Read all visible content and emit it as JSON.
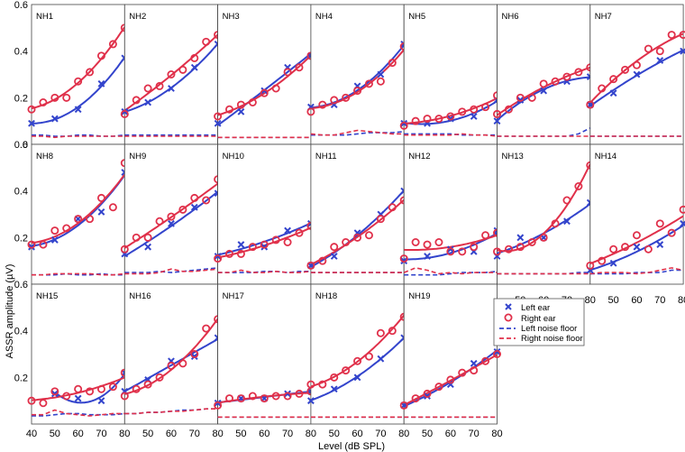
{
  "chart_data": {
    "type": "scatter",
    "xlabel": "Level (dB SPL)",
    "ylabel": "ASSR amplitude (µV)",
    "xlim": [
      40,
      80
    ],
    "ylim": [
      0,
      0.6
    ],
    "x_ticks": [
      40,
      50,
      60,
      70,
      80
    ],
    "y_ticks": [
      0,
      0.2,
      0.4,
      0.6
    ],
    "y_tick_labels": [
      "0",
      "0.2",
      "0.4",
      "0.6"
    ],
    "colors": {
      "left": "#3344cc",
      "right": "#e0304a"
    },
    "legend": [
      {
        "label": "Left ear",
        "marker": "x",
        "color": "#3344cc"
      },
      {
        "label": "Right ear",
        "marker": "o",
        "color": "#e0304a"
      },
      {
        "label": "Left noise floor",
        "line": "dashed",
        "color": "#3344cc"
      },
      {
        "label": "Right noise floor",
        "line": "dashed",
        "color": "#e0304a"
      }
    ],
    "x": [
      40,
      45,
      50,
      55,
      60,
      65,
      70,
      75,
      80
    ],
    "panels": [
      {
        "label": "NH1",
        "left": [
          0.09,
          null,
          0.11,
          null,
          0.15,
          null,
          0.26,
          null,
          0.37
        ],
        "right": [
          0.15,
          0.18,
          0.2,
          0.2,
          0.27,
          0.31,
          0.38,
          0.43,
          0.5
        ],
        "left_noise": [
          0.04,
          0.04,
          0.035,
          0.035,
          0.04,
          0.04,
          0.035,
          0.035,
          0.04
        ],
        "right_noise": [
          0.035,
          0.035,
          0.03,
          0.035,
          0.035,
          0.035,
          0.035,
          0.035,
          0.035
        ]
      },
      {
        "label": "NH2",
        "left": [
          0.14,
          null,
          0.18,
          null,
          0.24,
          null,
          0.33,
          null,
          0.43
        ],
        "right": [
          0.13,
          0.19,
          0.24,
          0.25,
          0.3,
          0.32,
          0.37,
          0.44,
          0.47
        ],
        "left_noise": [
          0.04,
          0.04,
          0.04,
          0.04,
          0.04,
          0.04,
          0.04,
          0.04,
          0.04
        ],
        "right_noise": [
          0.035,
          0.035,
          0.035,
          0.035,
          0.035,
          0.035,
          0.035,
          0.035,
          0.035
        ]
      },
      {
        "label": "NH3",
        "left": [
          0.09,
          null,
          0.14,
          null,
          0.23,
          null,
          0.33,
          null,
          0.38
        ],
        "right": [
          0.12,
          0.15,
          0.17,
          0.18,
          0.22,
          0.24,
          0.31,
          0.33,
          0.38
        ],
        "left_noise": [
          0.03,
          0.03,
          0.03,
          0.03,
          0.03,
          0.03,
          0.03,
          0.03,
          0.03
        ],
        "right_noise": [
          0.03,
          0.03,
          0.03,
          0.03,
          0.03,
          0.03,
          0.03,
          0.03,
          0.03
        ]
      },
      {
        "label": "NH4",
        "left": [
          0.16,
          null,
          0.17,
          null,
          0.25,
          null,
          0.3,
          null,
          0.43
        ],
        "right": [
          0.14,
          0.17,
          0.19,
          0.2,
          0.23,
          0.26,
          0.27,
          0.35,
          0.42
        ],
        "left_noise": [
          0.04,
          0.04,
          0.04,
          0.04,
          0.045,
          0.05,
          0.05,
          0.05,
          0.055
        ],
        "right_noise": [
          0.045,
          0.04,
          0.04,
          0.05,
          0.06,
          0.055,
          0.05,
          0.045,
          0.045
        ]
      },
      {
        "label": "NH5",
        "left": [
          0.09,
          null,
          0.09,
          null,
          0.11,
          null,
          0.12,
          null,
          0.19
        ],
        "right": [
          0.08,
          0.1,
          0.11,
          0.11,
          0.12,
          0.14,
          0.15,
          0.16,
          0.21
        ],
        "left_noise": [
          0.045,
          0.045,
          0.045,
          0.045,
          0.045,
          0.04,
          0.04,
          0.04,
          0.04
        ],
        "right_noise": [
          0.04,
          0.04,
          0.04,
          0.04,
          0.04,
          0.045,
          0.04,
          0.04,
          0.035
        ]
      },
      {
        "label": "NH6",
        "left": [
          0.1,
          null,
          0.19,
          null,
          0.23,
          null,
          0.27,
          null,
          0.29
        ],
        "right": [
          0.13,
          0.15,
          0.2,
          0.2,
          0.26,
          0.27,
          0.29,
          0.31,
          0.33
        ],
        "left_noise": [
          0.035,
          0.035,
          0.035,
          0.035,
          0.035,
          0.035,
          0.035,
          0.045,
          0.07
        ],
        "right_noise": [
          0.035,
          0.035,
          0.035,
          0.035,
          0.035,
          0.035,
          0.035,
          0.035,
          0.035
        ]
      },
      {
        "label": "NH7",
        "left": [
          0.17,
          null,
          0.22,
          null,
          0.3,
          null,
          0.36,
          null,
          0.4
        ],
        "right": [
          0.17,
          0.24,
          0.28,
          0.32,
          0.34,
          0.41,
          0.4,
          0.47,
          0.47
        ],
        "left_noise": [
          0.035,
          0.035,
          0.035,
          0.035,
          0.035,
          0.035,
          0.035,
          0.035,
          0.035
        ],
        "right_noise": [
          0.035,
          0.035,
          0.035,
          0.035,
          0.035,
          0.035,
          0.035,
          0.035,
          0.035
        ]
      },
      {
        "label": "NH8",
        "left": [
          0.16,
          null,
          0.19,
          null,
          0.28,
          null,
          0.31,
          null,
          0.48
        ],
        "right": [
          0.17,
          0.17,
          0.23,
          0.24,
          0.28,
          0.28,
          0.37,
          0.33,
          0.52
        ],
        "left_noise": [
          0.04,
          0.04,
          0.04,
          0.045,
          0.04,
          0.04,
          0.045,
          0.04,
          0.04
        ],
        "right_noise": [
          0.04,
          0.04,
          0.045,
          0.045,
          0.045,
          0.045,
          0.04,
          0.04,
          0.045
        ]
      },
      {
        "label": "NH9",
        "left": [
          0.13,
          null,
          0.16,
          null,
          0.26,
          null,
          0.33,
          null,
          0.39
        ],
        "right": [
          0.15,
          0.2,
          0.2,
          0.27,
          0.29,
          0.32,
          0.37,
          0.36,
          0.45
        ],
        "left_noise": [
          0.05,
          0.05,
          0.05,
          0.055,
          0.05,
          0.055,
          0.06,
          0.065,
          0.07
        ],
        "right_noise": [
          0.045,
          0.045,
          0.045,
          0.05,
          0.065,
          0.055,
          0.055,
          0.06,
          0.065
        ]
      },
      {
        "label": "NH10",
        "left": [
          0.12,
          null,
          0.17,
          null,
          0.16,
          null,
          0.23,
          null,
          0.26
        ],
        "right": [
          0.11,
          0.13,
          0.13,
          0.16,
          0.17,
          0.19,
          0.18,
          0.22,
          0.25
        ],
        "left_noise": [
          0.05,
          0.05,
          0.05,
          0.05,
          0.055,
          0.055,
          0.05,
          0.055,
          0.055
        ],
        "right_noise": [
          0.05,
          0.05,
          0.06,
          0.05,
          0.05,
          0.055,
          0.05,
          0.05,
          0.055
        ]
      },
      {
        "label": "NH11",
        "left": [
          0.08,
          null,
          0.12,
          null,
          0.22,
          null,
          0.3,
          null,
          0.4
        ],
        "right": [
          0.08,
          0.1,
          0.16,
          0.18,
          0.2,
          0.21,
          0.28,
          0.33,
          0.36
        ],
        "left_noise": [
          0.05,
          0.05,
          0.05,
          0.05,
          0.05,
          0.05,
          0.05,
          0.05,
          0.05
        ],
        "right_noise": [
          0.05,
          0.05,
          0.05,
          0.05,
          0.05,
          0.05,
          0.05,
          0.05,
          0.05
        ]
      },
      {
        "label": "NH12",
        "left": [
          0.1,
          null,
          0.12,
          null,
          0.15,
          null,
          0.14,
          null,
          0.23
        ],
        "right": [
          0.11,
          0.18,
          0.17,
          0.18,
          0.14,
          0.14,
          0.16,
          0.21,
          0.22
        ],
        "left_noise": [
          0.04,
          0.04,
          0.04,
          0.04,
          0.045,
          0.05,
          0.05,
          0.05,
          0.055
        ],
        "right_noise": [
          0.05,
          0.07,
          0.06,
          0.045,
          0.05,
          0.045,
          0.05,
          0.05,
          0.05
        ]
      },
      {
        "label": "NH13",
        "left": [
          0.12,
          null,
          0.2,
          null,
          0.2,
          null,
          0.27,
          null,
          0.35
        ],
        "right": [
          0.14,
          0.15,
          0.16,
          0.18,
          0.2,
          0.26,
          0.36,
          0.42,
          0.51
        ],
        "left_noise": [
          0.045,
          0.045,
          0.045,
          0.045,
          0.045,
          0.045,
          0.045,
          0.05,
          0.05
        ],
        "right_noise": [
          0.045,
          0.045,
          0.045,
          0.045,
          0.045,
          0.045,
          0.045,
          0.045,
          0.045
        ]
      },
      {
        "label": "NH14",
        "left": [
          0.06,
          null,
          0.09,
          null,
          0.16,
          null,
          0.17,
          null,
          0.26
        ],
        "right": [
          0.08,
          0.1,
          0.15,
          0.16,
          0.21,
          0.15,
          0.26,
          0.22,
          0.32
        ],
        "left_noise": [
          0.045,
          0.045,
          0.045,
          0.045,
          0.05,
          0.05,
          0.05,
          0.06,
          0.06
        ],
        "right_noise": [
          0.045,
          0.05,
          0.05,
          0.05,
          0.045,
          0.05,
          0.06,
          0.07,
          0.06
        ]
      },
      {
        "label": "NH15",
        "left": [
          null,
          null,
          0.13,
          null,
          0.11,
          null,
          0.1,
          null,
          0.22
        ],
        "right": [
          0.1,
          0.09,
          0.14,
          0.12,
          0.15,
          0.14,
          0.15,
          0.16,
          0.22
        ],
        "left_noise": [
          0.035,
          0.035,
          0.04,
          0.045,
          0.045,
          0.04,
          0.04,
          0.04,
          0.045
        ],
        "right_noise": [
          0.04,
          0.04,
          0.06,
          0.045,
          0.04,
          0.035,
          0.04,
          0.045,
          0.045
        ]
      },
      {
        "label": "NH16",
        "left": [
          0.14,
          null,
          0.19,
          null,
          0.27,
          null,
          0.29,
          null,
          0.37
        ],
        "right": [
          0.12,
          0.15,
          0.17,
          0.2,
          0.25,
          0.26,
          0.3,
          0.41,
          0.45
        ],
        "left_noise": [
          0.045,
          0.045,
          0.05,
          0.05,
          0.055,
          0.06,
          0.06,
          0.065,
          0.065
        ],
        "right_noise": [
          0.045,
          0.045,
          0.05,
          0.05,
          0.055,
          0.055,
          0.06,
          0.065,
          0.065
        ]
      },
      {
        "label": "NH17",
        "left": [
          0.09,
          null,
          0.11,
          null,
          0.11,
          null,
          0.13,
          null,
          0.14
        ],
        "right": [
          0.08,
          0.11,
          0.11,
          0.12,
          0.11,
          0.12,
          0.12,
          0.13,
          0.14
        ],
        "left_noise": [
          0.03,
          0.03,
          0.03,
          0.03,
          0.03,
          0.03,
          0.03,
          0.03,
          0.03
        ],
        "right_noise": [
          0.03,
          0.03,
          0.03,
          0.03,
          0.03,
          0.03,
          0.03,
          0.03,
          0.03
        ]
      },
      {
        "label": "NH18",
        "left": [
          0.1,
          null,
          0.15,
          null,
          0.2,
          null,
          0.28,
          null,
          0.37
        ],
        "right": [
          0.17,
          0.17,
          0.2,
          0.23,
          0.27,
          0.29,
          0.39,
          0.4,
          0.46
        ],
        "left_noise": [
          0.03,
          0.03,
          0.03,
          0.03,
          0.03,
          0.03,
          0.03,
          0.03,
          0.03
        ],
        "right_noise": [
          0.03,
          0.03,
          0.03,
          0.03,
          0.03,
          0.03,
          0.03,
          0.03,
          0.03
        ]
      },
      {
        "label": "NH19",
        "left": [
          0.08,
          null,
          0.12,
          null,
          0.17,
          null,
          0.26,
          null,
          0.31
        ],
        "right": [
          0.08,
          0.11,
          0.13,
          0.16,
          0.19,
          0.22,
          0.23,
          0.27,
          0.3
        ],
        "left_noise": [
          0.03,
          0.03,
          0.03,
          0.03,
          0.03,
          0.03,
          0.03,
          0.03,
          0.03
        ],
        "right_noise": [
          0.03,
          0.03,
          0.03,
          0.03,
          0.03,
          0.03,
          0.03,
          0.03,
          0.03
        ]
      }
    ]
  }
}
